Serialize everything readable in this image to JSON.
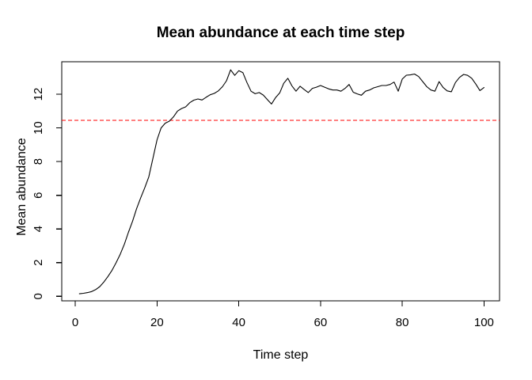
{
  "chart_data": {
    "type": "line",
    "title": "Mean abundance at each time step",
    "xlabel": "Time step",
    "ylabel": "Mean abundance",
    "x_ticks": [
      0,
      20,
      40,
      60,
      80,
      100
    ],
    "y_ticks": [
      0,
      2,
      4,
      6,
      8,
      10,
      12
    ],
    "xlim": [
      1,
      100
    ],
    "ylim": [
      0,
      13.5
    ],
    "grid": false,
    "legend": "none",
    "line_color": "#000000",
    "background": "#ffffff",
    "reference_line": {
      "value": 10.45,
      "color": "#ff0000",
      "style": "dashed"
    },
    "x": [
      1,
      2,
      3,
      4,
      5,
      6,
      7,
      8,
      9,
      10,
      11,
      12,
      13,
      14,
      15,
      16,
      17,
      18,
      19,
      20,
      21,
      22,
      23,
      24,
      25,
      26,
      27,
      28,
      29,
      30,
      31,
      32,
      33,
      34,
      35,
      36,
      37,
      38,
      39,
      40,
      41,
      42,
      43,
      44,
      45,
      46,
      47,
      48,
      49,
      50,
      51,
      52,
      53,
      54,
      55,
      56,
      57,
      58,
      59,
      60,
      61,
      62,
      63,
      64,
      65,
      66,
      67,
      68,
      69,
      70,
      71,
      72,
      73,
      74,
      75,
      76,
      77,
      78,
      79,
      80,
      81,
      82,
      83,
      84,
      85,
      86,
      87,
      88,
      89,
      90,
      91,
      92,
      93,
      94,
      95,
      96,
      97,
      98,
      99,
      100
    ],
    "series": [
      {
        "name": "mean abundance",
        "values": [
          0.15,
          0.18,
          0.22,
          0.28,
          0.4,
          0.58,
          0.85,
          1.18,
          1.55,
          2.0,
          2.5,
          3.1,
          3.8,
          4.45,
          5.2,
          5.85,
          6.45,
          7.1,
          8.2,
          9.3,
          10.0,
          10.28,
          10.4,
          10.65,
          11.0,
          11.15,
          11.25,
          11.5,
          11.65,
          11.72,
          11.66,
          11.82,
          11.97,
          12.05,
          12.2,
          12.45,
          12.8,
          13.45,
          13.12,
          13.4,
          13.28,
          12.7,
          12.18,
          12.03,
          12.1,
          11.95,
          11.68,
          11.42,
          11.8,
          12.08,
          12.65,
          12.95,
          12.5,
          12.18,
          12.48,
          12.28,
          12.1,
          12.35,
          12.42,
          12.52,
          12.42,
          12.32,
          12.25,
          12.25,
          12.18,
          12.35,
          12.58,
          12.12,
          12.02,
          11.94,
          12.18,
          12.25,
          12.38,
          12.45,
          12.52,
          12.52,
          12.58,
          12.72,
          12.18,
          12.9,
          13.13,
          13.15,
          13.2,
          13.05,
          12.75,
          12.45,
          12.25,
          12.18,
          12.75,
          12.4,
          12.2,
          12.15,
          12.7,
          13.0,
          13.18,
          13.12,
          12.95,
          12.6,
          12.22,
          12.4
        ]
      }
    ]
  }
}
